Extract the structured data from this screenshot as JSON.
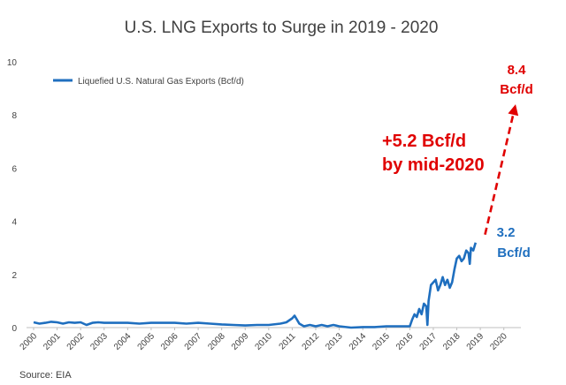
{
  "colors": {
    "series": "#1f6fbf",
    "projection": "#e00000",
    "text": "#404040",
    "axis": "#bfbfbf"
  },
  "chart_data": {
    "type": "line",
    "title": "U.S. LNG Exports to Surge in 2019 - 2020",
    "xlabel": "",
    "ylabel": "",
    "xlim": [
      2000,
      2020.5
    ],
    "ylim": [
      0,
      10
    ],
    "y_ticks": [
      "0",
      "2",
      "4",
      "6",
      "8",
      "10"
    ],
    "x_ticks": [
      "2000",
      "2001",
      "2002",
      "2003",
      "2004",
      "2005",
      "2006",
      "2007",
      "2008",
      "2009",
      "2010",
      "2011",
      "2012",
      "2013",
      "2014",
      "2015",
      "2016",
      "2017",
      "2018",
      "2019",
      "2020"
    ],
    "grid": false,
    "legend": {
      "position": "top-left",
      "label": "Liquefied U.S. Natural Gas Exports (Bcf/d)"
    },
    "series": [
      {
        "name": "Liquefied U.S. Natural Gas Exports (Bcf/d)",
        "x": [
          2000,
          2000.25,
          2000.5,
          2000.75,
          2001,
          2001.25,
          2001.5,
          2001.75,
          2002,
          2002.25,
          2002.5,
          2002.75,
          2003,
          2003.5,
          2004,
          2004.5,
          2005,
          2005.5,
          2006,
          2006.5,
          2007,
          2007.5,
          2008,
          2008.5,
          2009,
          2009.5,
          2010,
          2010.5,
          2010.75,
          2011,
          2011.1,
          2011.2,
          2011.3,
          2011.5,
          2011.75,
          2012,
          2012.25,
          2012.5,
          2012.75,
          2013,
          2013.5,
          2014,
          2014.5,
          2015,
          2015.5,
          2016,
          2016.1,
          2016.2,
          2016.3,
          2016.4,
          2016.5,
          2016.6,
          2016.7,
          2016.75,
          2016.8,
          2016.9,
          2017,
          2017.1,
          2017.2,
          2017.3,
          2017.4,
          2017.5,
          2017.6,
          2017.7,
          2017.8,
          2017.9,
          2018,
          2018.1,
          2018.2,
          2018.3,
          2018.4,
          2018.5,
          2018.55,
          2018.6,
          2018.7,
          2018.8
        ],
        "y": [
          0.2,
          0.15,
          0.18,
          0.22,
          0.2,
          0.15,
          0.2,
          0.18,
          0.2,
          0.1,
          0.18,
          0.2,
          0.18,
          0.18,
          0.18,
          0.15,
          0.18,
          0.18,
          0.18,
          0.15,
          0.18,
          0.15,
          0.12,
          0.1,
          0.08,
          0.1,
          0.1,
          0.15,
          0.2,
          0.35,
          0.45,
          0.3,
          0.15,
          0.05,
          0.1,
          0.05,
          0.1,
          0.05,
          0.1,
          0.05,
          0.0,
          0.02,
          0.02,
          0.05,
          0.05,
          0.05,
          0.3,
          0.5,
          0.4,
          0.7,
          0.5,
          0.9,
          0.8,
          0.1,
          1.0,
          1.6,
          1.7,
          1.8,
          1.4,
          1.6,
          1.9,
          1.6,
          1.8,
          1.5,
          1.7,
          2.2,
          2.6,
          2.7,
          2.5,
          2.6,
          2.9,
          2.8,
          2.4,
          3.0,
          2.9,
          3.2
        ]
      }
    ],
    "projection": {
      "from": [
        2019.2,
        3.5
      ],
      "to": [
        2020.5,
        8.4
      ]
    },
    "annotations": {
      "current_value_line1": "3.2",
      "current_value_line2": "Bcf/d",
      "increase_line1": "+5.2 Bcf/d",
      "increase_line2": "by mid-2020",
      "target_line1": "8.4",
      "target_line2": "Bcf/d"
    },
    "source": "Source: EIA"
  }
}
